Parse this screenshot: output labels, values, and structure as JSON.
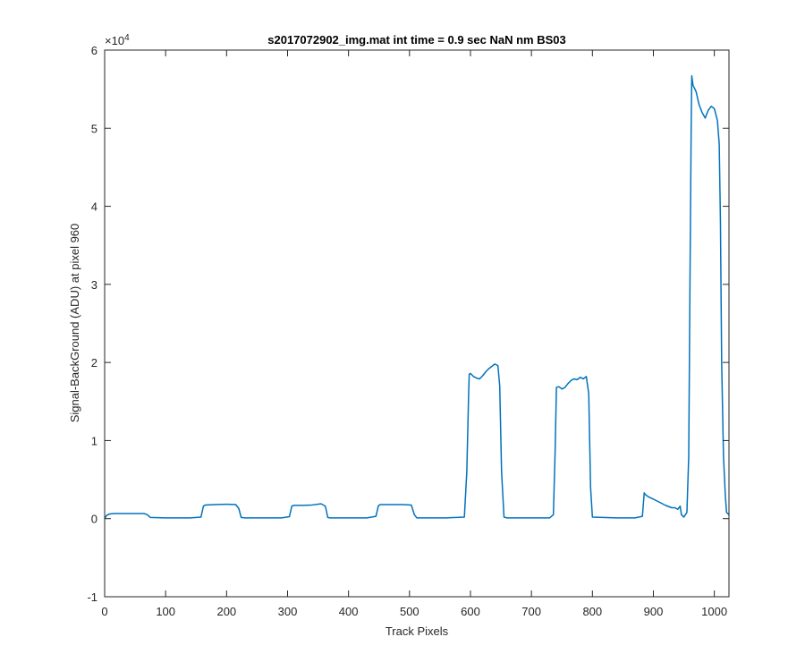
{
  "chart_data": {
    "type": "line",
    "title": "s2017072902_img.mat int time = 0.9 sec  NaN nm BS03",
    "xlabel": "Track Pixels",
    "ylabel": "Signal-BackGround (ADU) at pixel 960",
    "y_exponent_label": "×10",
    "y_exponent_power": "4",
    "xlim": [
      0,
      1024
    ],
    "ylim": [
      -10000,
      60000
    ],
    "xticks": [
      0,
      100,
      200,
      300,
      400,
      500,
      600,
      700,
      800,
      900,
      1000
    ],
    "xtick_labels": [
      "0",
      "100",
      "200",
      "300",
      "400",
      "500",
      "600",
      "700",
      "800",
      "900",
      "1000"
    ],
    "yticks": [
      -10000,
      0,
      10000,
      20000,
      30000,
      40000,
      50000,
      60000
    ],
    "ytick_labels": [
      "-1",
      "0",
      "1",
      "2",
      "3",
      "4",
      "5",
      "6"
    ],
    "grid": false,
    "series": [
      {
        "color": "#0072BD",
        "x": [
          0,
          3,
          8,
          15,
          30,
          50,
          65,
          70,
          75,
          100,
          140,
          158,
          162,
          165,
          180,
          200,
          215,
          220,
          224,
          230,
          260,
          290,
          303,
          307,
          310,
          325,
          340,
          355,
          362,
          366,
          370,
          400,
          430,
          445,
          449,
          452,
          470,
          490,
          503,
          508,
          512,
          530,
          560,
          590,
          594,
          597,
          598,
          600,
          605,
          610,
          615,
          620,
          625,
          630,
          635,
          640,
          645,
          648,
          651,
          655,
          660,
          700,
          730,
          736,
          739,
          741,
          745,
          750,
          755,
          760,
          765,
          770,
          775,
          780,
          785,
          790,
          794,
          797,
          800,
          840,
          870,
          882,
          885,
          888,
          892,
          900,
          910,
          920,
          930,
          935,
          940,
          944,
          946,
          950,
          955,
          958,
          960,
          962,
          963,
          965,
          970,
          975,
          980,
          985,
          990,
          995,
          1000,
          1005,
          1008,
          1010,
          1012,
          1015,
          1018,
          1020,
          1024
        ],
        "y": [
          0,
          400,
          600,
          650,
          650,
          650,
          650,
          500,
          150,
          100,
          100,
          200,
          1600,
          1750,
          1800,
          1850,
          1800,
          1300,
          150,
          100,
          100,
          100,
          250,
          1600,
          1700,
          1700,
          1750,
          1900,
          1600,
          150,
          100,
          100,
          100,
          300,
          1650,
          1800,
          1800,
          1800,
          1750,
          500,
          100,
          100,
          100,
          200,
          6000,
          16000,
          18500,
          18600,
          18200,
          18000,
          17900,
          18300,
          18800,
          19200,
          19500,
          19800,
          19600,
          17000,
          6000,
          200,
          100,
          100,
          100,
          500,
          9000,
          16800,
          16900,
          16600,
          16800,
          17300,
          17700,
          17900,
          17800,
          18100,
          17900,
          18200,
          16000,
          4000,
          200,
          100,
          100,
          300,
          3300,
          3000,
          2800,
          2500,
          2100,
          1700,
          1400,
          1400,
          1200,
          1600,
          500,
          200,
          800,
          8000,
          30000,
          50000,
          56700,
          55500,
          54700,
          53000,
          52000,
          51300,
          52300,
          52800,
          52500,
          51000,
          48000,
          38000,
          20000,
          8000,
          3000,
          800,
          500
        ]
      }
    ]
  }
}
